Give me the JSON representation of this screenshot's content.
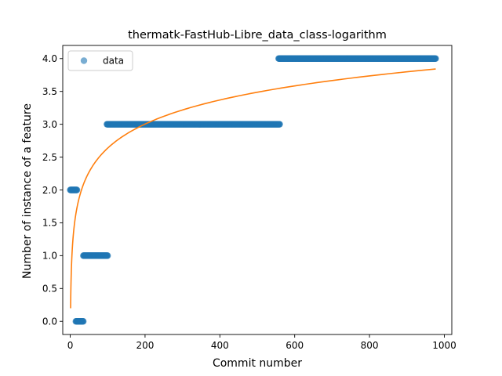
{
  "chart_data": {
    "type": "scatter",
    "title": "thermatk-FastHub-Libre_data_class-logarithm",
    "xlabel": "Commit number",
    "ylabel": "Number of instance of a feature",
    "xlim": [
      -20,
      1020
    ],
    "ylim": [
      -0.2,
      4.2
    ],
    "x_ticks": [
      0,
      200,
      400,
      600,
      800,
      1000
    ],
    "x_tick_labels": [
      "0",
      "200",
      "400",
      "600",
      "800",
      "1000"
    ],
    "y_ticks": [
      0.0,
      0.5,
      1.0,
      1.5,
      2.0,
      2.5,
      3.0,
      3.5,
      4.0
    ],
    "y_tick_labels": [
      "0.0",
      "0.5",
      "1.0",
      "1.5",
      "2.0",
      "2.5",
      "3.0",
      "3.5",
      "4.0"
    ],
    "grid": false,
    "legend": {
      "position": "top-left",
      "entries": [
        "data"
      ]
    },
    "colors": {
      "data": "#1f77b4",
      "fit": "#ff7f0e"
    },
    "series": [
      {
        "name": "data",
        "kind": "scatter",
        "segments": [
          {
            "x_start": 0,
            "x_end": 18,
            "y": 2
          },
          {
            "x_start": 15,
            "x_end": 35,
            "y": 0
          },
          {
            "x_start": 35,
            "x_end": 100,
            "y": 1
          },
          {
            "x_start": 98,
            "x_end": 560,
            "y": 3
          },
          {
            "x_start": 557,
            "x_end": 977,
            "y": 4
          }
        ]
      },
      {
        "kind": "line",
        "fit": {
          "model": "logarithm",
          "a": 0.2,
          "b": 0.529,
          "x_start": 1,
          "x_end": 977
        }
      }
    ]
  }
}
